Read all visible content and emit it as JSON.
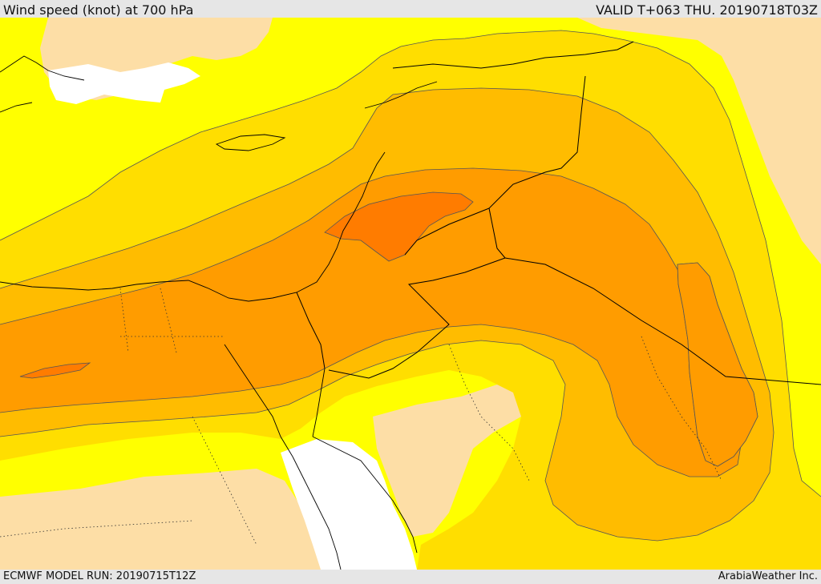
{
  "header": {
    "title": "Wind speed (knot) at 700 hPa",
    "valid_time": "VALID T+063 THU. 20190718T03Z"
  },
  "footer": {
    "model_run": "ECMWF MODEL RUN: 20190715T12Z",
    "credit": "ArabiaWeather Inc."
  },
  "map": {
    "field": "wind speed",
    "units": "knot",
    "level": "700 hPa",
    "fill_colors": {
      "white": "#ffffff",
      "light_tan": "#fddea6",
      "yellow": "#ffff00",
      "gold": "#ffde00",
      "amber": "#ffbc00",
      "orange": "#ff9c00",
      "deep_orange": "#ff7c00"
    },
    "line_colors": {
      "contour": "#555555",
      "border": "#000000",
      "coast": "#000000"
    }
  }
}
